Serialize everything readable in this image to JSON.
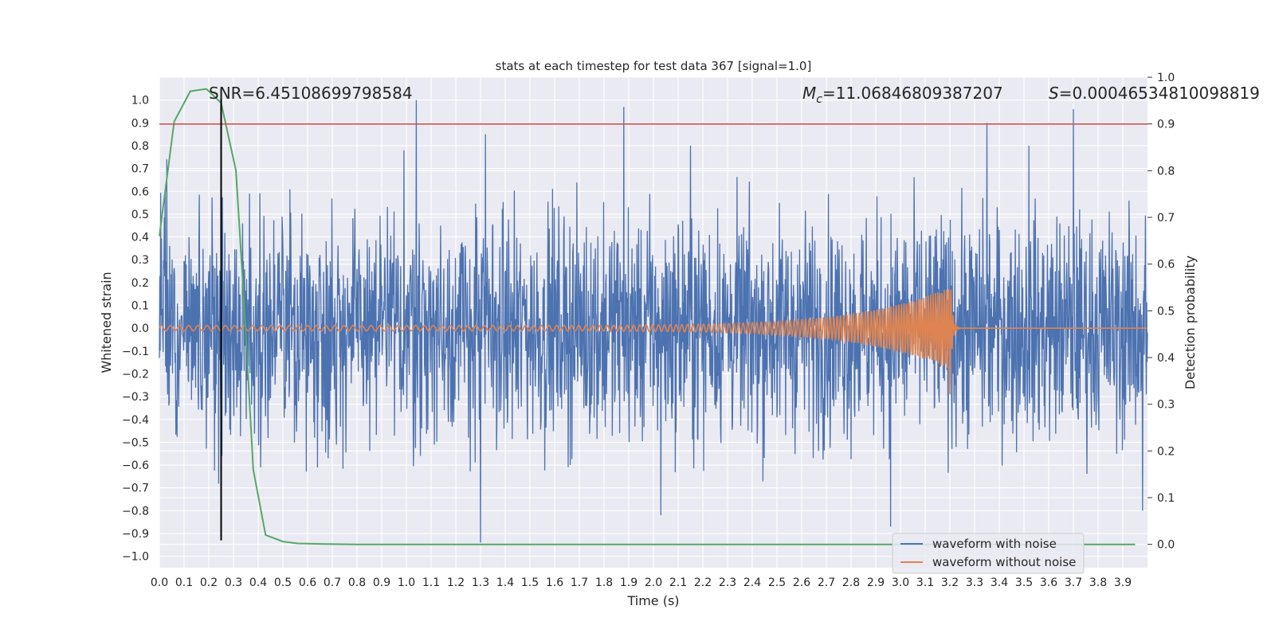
{
  "chart_data": {
    "type": "line",
    "title": "stats at each timestep for test data 367 [signal=1.0]",
    "xlabel": "Time (s)",
    "ylabel": "Whitened strain",
    "y2label": "Detection probability",
    "xlim": [
      0.0,
      4.0
    ],
    "ylim": [
      -1.05,
      1.1
    ],
    "y2lim": [
      -0.05,
      1.0
    ],
    "x_ticks": [
      "0.0",
      "0.1",
      "0.2",
      "0.3",
      "0.4",
      "0.5",
      "0.6",
      "0.7",
      "0.8",
      "0.9",
      "1.0",
      "1.1",
      "1.2",
      "1.3",
      "1.4",
      "1.5",
      "1.6",
      "1.7",
      "1.8",
      "1.9",
      "2.0",
      "2.1",
      "2.2",
      "2.3",
      "2.4",
      "2.5",
      "2.6",
      "2.7",
      "2.8",
      "2.9",
      "3.0",
      "3.1",
      "3.2",
      "3.3",
      "3.4",
      "3.5",
      "3.6",
      "3.7",
      "3.8",
      "3.9"
    ],
    "y_ticks": [
      "1.0",
      "0.9",
      "0.8",
      "0.7",
      "0.6",
      "0.5",
      "0.4",
      "0.3",
      "0.2",
      "0.1",
      "0.0",
      "−0.1",
      "−0.2",
      "−0.3",
      "−0.4",
      "−0.5",
      "−0.6",
      "−0.7",
      "−0.8",
      "−0.9",
      "−1.0"
    ],
    "y2_ticks": [
      "1.0",
      "0.9",
      "0.8",
      "0.7",
      "0.6",
      "0.5",
      "0.4",
      "0.3",
      "0.2",
      "0.1",
      "0.0"
    ],
    "annotations": {
      "snr": "SNR=6.45108699798584",
      "mc_symbol": "M",
      "mc_sub": "c",
      "mc_value": "=11.06846809387207",
      "s_symbol": "S",
      "s_value": "=0.00046534810098819"
    },
    "series": [
      {
        "name": "waveform with noise",
        "axis": "left",
        "color": "#4c72b0",
        "description": "noisy whitened strain, amplitude roughly -0.95..1.0 over 0-4 s",
        "envelope_max": 1.0,
        "envelope_min": -0.95,
        "peaks": [
          [
            0.03,
            0.74
          ],
          [
            0.99,
            0.78
          ],
          [
            1.04,
            1.0
          ],
          [
            1.32,
            0.85
          ],
          [
            1.88,
            0.97
          ],
          [
            2.15,
            0.8
          ],
          [
            3.35,
            0.9
          ],
          [
            3.52,
            0.8
          ],
          [
            3.7,
            0.96
          ],
          [
            1.3,
            -0.94
          ],
          [
            2.03,
            -0.82
          ],
          [
            2.96,
            -0.87
          ],
          [
            3.98,
            -0.8
          ]
        ]
      },
      {
        "name": "waveform without noise",
        "axis": "left",
        "color": "#dd8452",
        "description": "chirp signal growing in frequency and amplitude, merger near 3.2 s",
        "amp_start": 0.012,
        "amp_peak": 0.18,
        "merger_time": 3.2,
        "freq_start_hz": 27,
        "freq_end_hz": 115
      },
      {
        "name": "Detection probability",
        "axis": "right",
        "color": "#55a868",
        "x": [
          0.0,
          0.06,
          0.125,
          0.19,
          0.25,
          0.31,
          0.345,
          0.38,
          0.43,
          0.5,
          0.56,
          0.65,
          0.8,
          1.0,
          2.0,
          3.0,
          3.95
        ],
        "values": [
          0.66,
          0.905,
          0.97,
          0.975,
          0.945,
          0.8,
          0.5,
          0.16,
          0.02,
          0.006,
          0.002,
          0.001,
          0.0,
          0.0,
          0.0,
          0.0,
          0.0
        ]
      }
    ],
    "threshold": {
      "axis": "right",
      "value": 0.9,
      "color": "#c44e52"
    },
    "vertical_marker": {
      "x": 0.25,
      "color": "#000000"
    },
    "legend": {
      "location": "lower-right",
      "entries": [
        {
          "label": "waveform with noise",
          "color": "#4c72b0"
        },
        {
          "label": "waveform without noise",
          "color": "#dd8452"
        }
      ]
    },
    "grid": true
  }
}
